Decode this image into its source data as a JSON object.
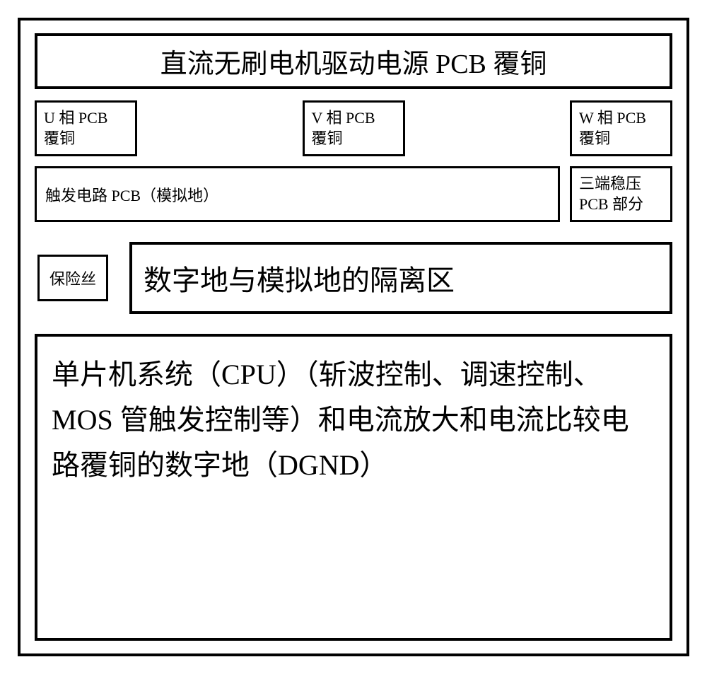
{
  "diagram": {
    "type": "block-diagram",
    "background_color": "#ffffff",
    "border_color": "#000000",
    "title": {
      "text": "直流无刷电机驱动电源 PCB 覆铜",
      "fontsize": 38,
      "border_width": 4
    },
    "phase_boxes": {
      "u": "U 相 PCB\n覆铜",
      "v": "V 相 PCB\n覆铜",
      "w": "W  相  PCB\n覆铜",
      "fontsize": 22,
      "border_width": 3
    },
    "trigger_box": {
      "text": "触发电路 PCB（模拟地）",
      "fontsize": 22,
      "border_width": 3
    },
    "threeterm_box": {
      "text": "三端稳压\nPCB 部分",
      "fontsize": 22,
      "border_width": 3
    },
    "fuse_box": {
      "text": "保险丝",
      "fontsize": 22,
      "border_width": 3
    },
    "isolation_box": {
      "text": "数字地与模拟地的隔离区",
      "fontsize": 40,
      "border_width": 4
    },
    "mcu_box": {
      "text": "单片机系统（CPU）（斩波控制、调速控制、MOS 管触发控制等）和电流放大和电流比较电路覆铜的数字地（DGND）",
      "fontsize": 40,
      "border_width": 4
    }
  }
}
